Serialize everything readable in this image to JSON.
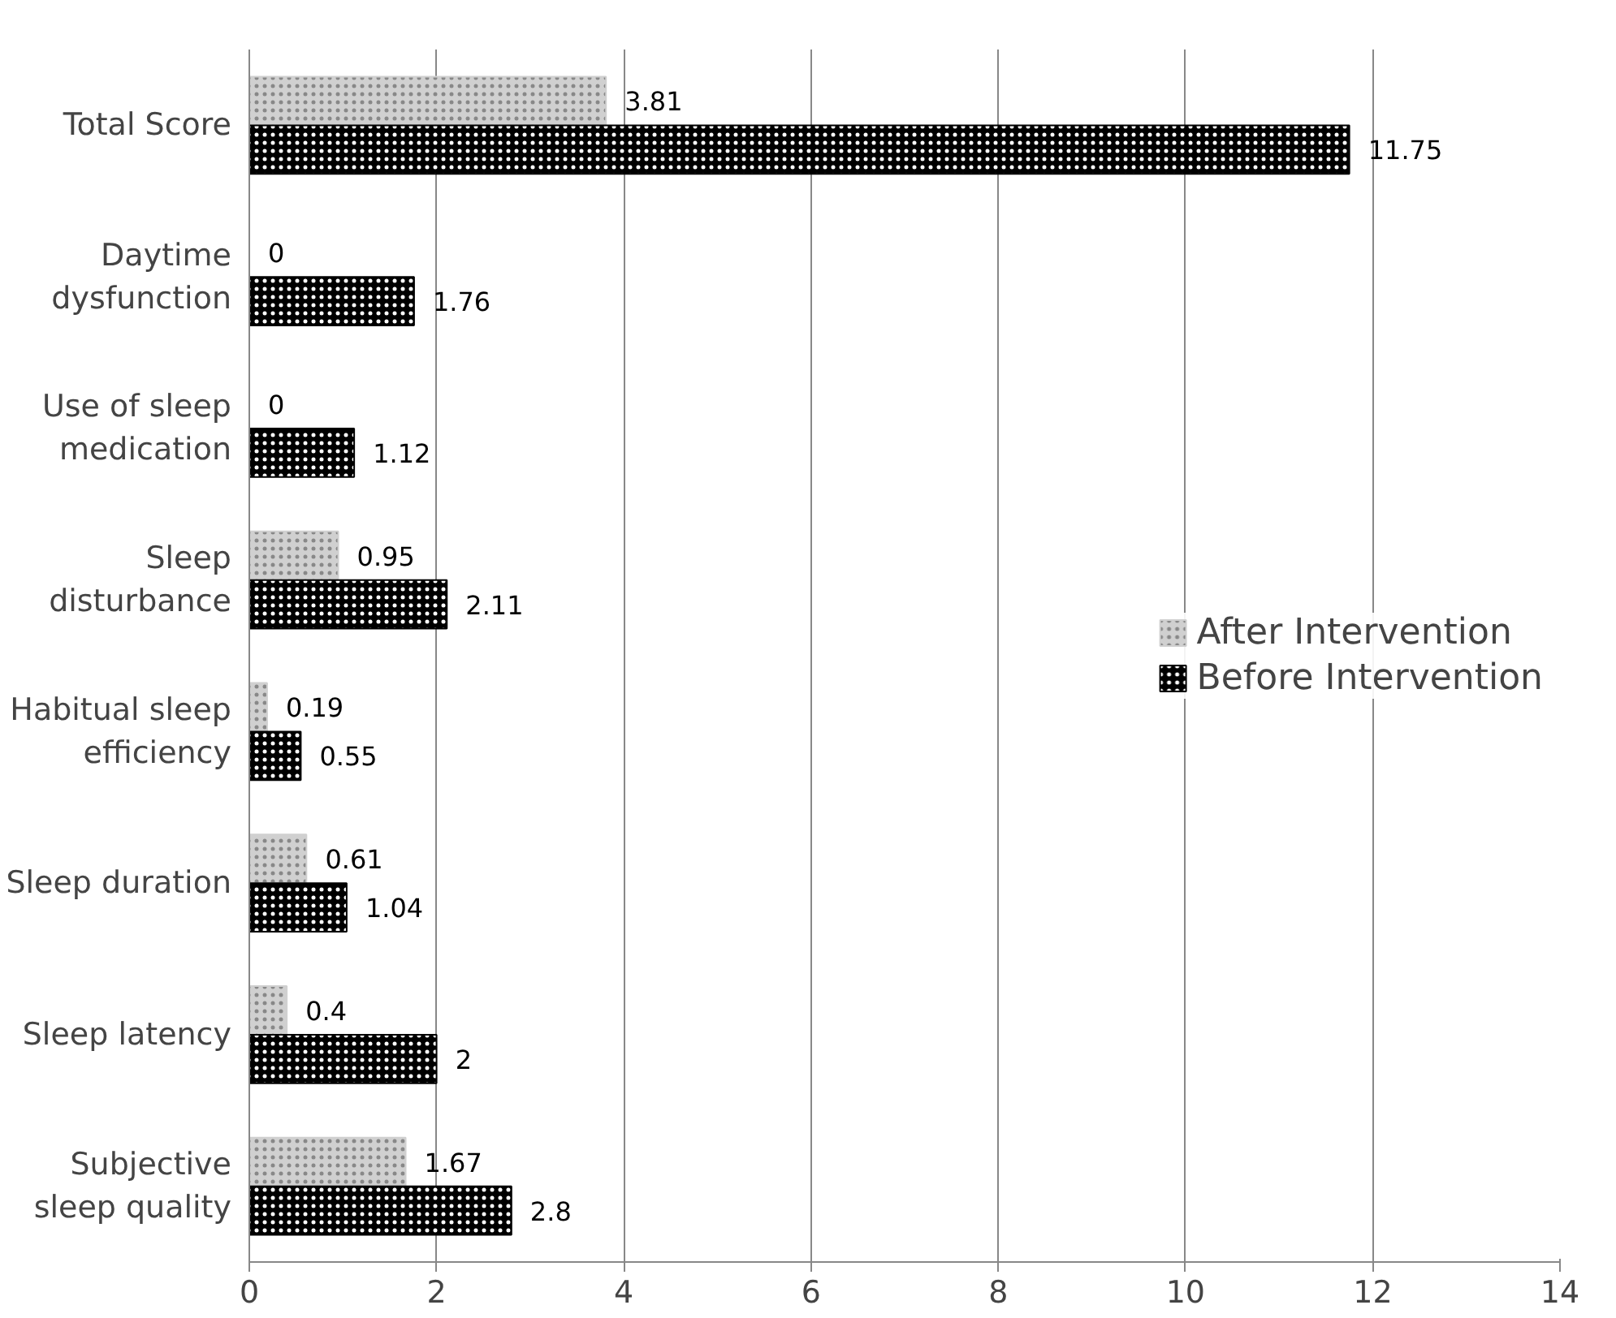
{
  "chart_data": {
    "type": "bar",
    "orientation": "horizontal",
    "categories": [
      "Total Score",
      "Daytime dysfunction",
      "Use of sleep medication",
      "Sleep disturbance",
      "Habitual sleep efficiency",
      "Sleep duration",
      "Sleep latency",
      "Subjective sleep quality"
    ],
    "series": [
      {
        "name": "After Intervention",
        "color": "#d0d0d0",
        "values": [
          3.81,
          0,
          0,
          0.95,
          0.19,
          0.61,
          0.4,
          1.67
        ]
      },
      {
        "name": "Before Intervention",
        "color": "#000000",
        "values": [
          11.75,
          1.76,
          1.12,
          2.11,
          0.55,
          1.04,
          2,
          2.8
        ]
      }
    ],
    "xlim": [
      0,
      14
    ],
    "xticks": [
      0,
      2,
      4,
      6,
      8,
      10,
      12,
      14
    ],
    "grid": "x",
    "legend": "right",
    "data_labels": true
  }
}
